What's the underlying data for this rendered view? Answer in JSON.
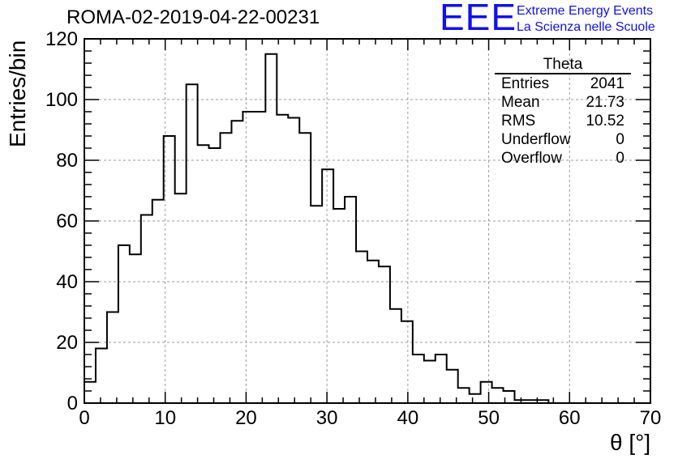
{
  "title": "ROMA-02-2019-04-22-00231",
  "logo": {
    "mark": "EEE",
    "line1": "Extreme Energy Events",
    "line2": "La Scienza nelle Scuole",
    "color": "#1010ee"
  },
  "stats_box": {
    "title": "Theta",
    "rows": [
      {
        "label": "Entries",
        "value": "2041"
      },
      {
        "label": "Mean",
        "value": "21.73"
      },
      {
        "label": "RMS",
        "value": "10.52"
      },
      {
        "label": "Underflow",
        "value": "0"
      },
      {
        "label": "Overflow",
        "value": "0"
      }
    ]
  },
  "chart_data": {
    "type": "histogram",
    "title": "ROMA-02-2019-04-22-00231",
    "xlabel": "θ [°]",
    "ylabel": "Entries/bin",
    "xlim": [
      0,
      70
    ],
    "ylim": [
      0,
      120
    ],
    "bin_width": 1.4,
    "x_ticks": [
      "0",
      "10",
      "20",
      "30",
      "40",
      "50",
      "60",
      "70"
    ],
    "y_ticks": [
      "0",
      "20",
      "40",
      "60",
      "80",
      "100",
      "120"
    ],
    "grid": true,
    "line_color": "#000000",
    "values": [
      7,
      18,
      30,
      52,
      49,
      62,
      67,
      88,
      69,
      105,
      85,
      84,
      89,
      93,
      96,
      96,
      115,
      95,
      94,
      89,
      65,
      77,
      64,
      68,
      50,
      47,
      45,
      31,
      27,
      16,
      14,
      16,
      11,
      5,
      3,
      7,
      5,
      4,
      1,
      1,
      1,
      0,
      0,
      0,
      0,
      0,
      0,
      0,
      0,
      0
    ]
  }
}
